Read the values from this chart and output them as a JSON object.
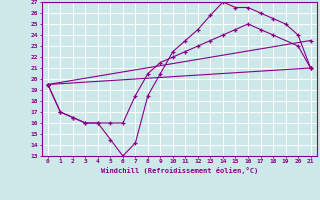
{
  "background_color": "#cde8e8",
  "grid_color": "#ffffff",
  "line_color": "#880088",
  "xlabel": "Windchill (Refroidissement éolien,°C)",
  "xlim": [
    -0.5,
    21.5
  ],
  "ylim": [
    13,
    27
  ],
  "yticks": [
    13,
    14,
    15,
    16,
    17,
    18,
    19,
    20,
    21,
    22,
    23,
    24,
    25,
    26,
    27
  ],
  "xticks": [
    0,
    1,
    2,
    3,
    4,
    5,
    6,
    7,
    8,
    9,
    10,
    11,
    12,
    13,
    14,
    15,
    16,
    17,
    18,
    19,
    20,
    21
  ],
  "line1_x": [
    0,
    1,
    2,
    3,
    4,
    5,
    6,
    7,
    8,
    9,
    10,
    11,
    12,
    13,
    14,
    15,
    16,
    17,
    18,
    19,
    20,
    21
  ],
  "line1_y": [
    19.5,
    17.0,
    16.5,
    16.0,
    16.0,
    14.5,
    13.0,
    14.2,
    18.5,
    20.5,
    22.5,
    23.5,
    24.5,
    25.8,
    27.0,
    26.5,
    26.5,
    26.0,
    25.5,
    25.0,
    24.0,
    21.0
  ],
  "line2_x": [
    0,
    1,
    2,
    3,
    4,
    5,
    6,
    7,
    8,
    9,
    10,
    11,
    12,
    13,
    14,
    15,
    16,
    17,
    18,
    20,
    21
  ],
  "line2_y": [
    19.5,
    17.0,
    16.5,
    16.0,
    16.0,
    16.0,
    16.0,
    18.5,
    20.5,
    21.5,
    22.0,
    22.5,
    23.0,
    23.5,
    24.0,
    24.5,
    25.0,
    24.5,
    24.0,
    23.0,
    21.0
  ],
  "line3_x": [
    0,
    21
  ],
  "line3_y": [
    19.5,
    21.0
  ],
  "line4_x": [
    0,
    21
  ],
  "line4_y": [
    19.5,
    23.5
  ],
  "marker": "+"
}
